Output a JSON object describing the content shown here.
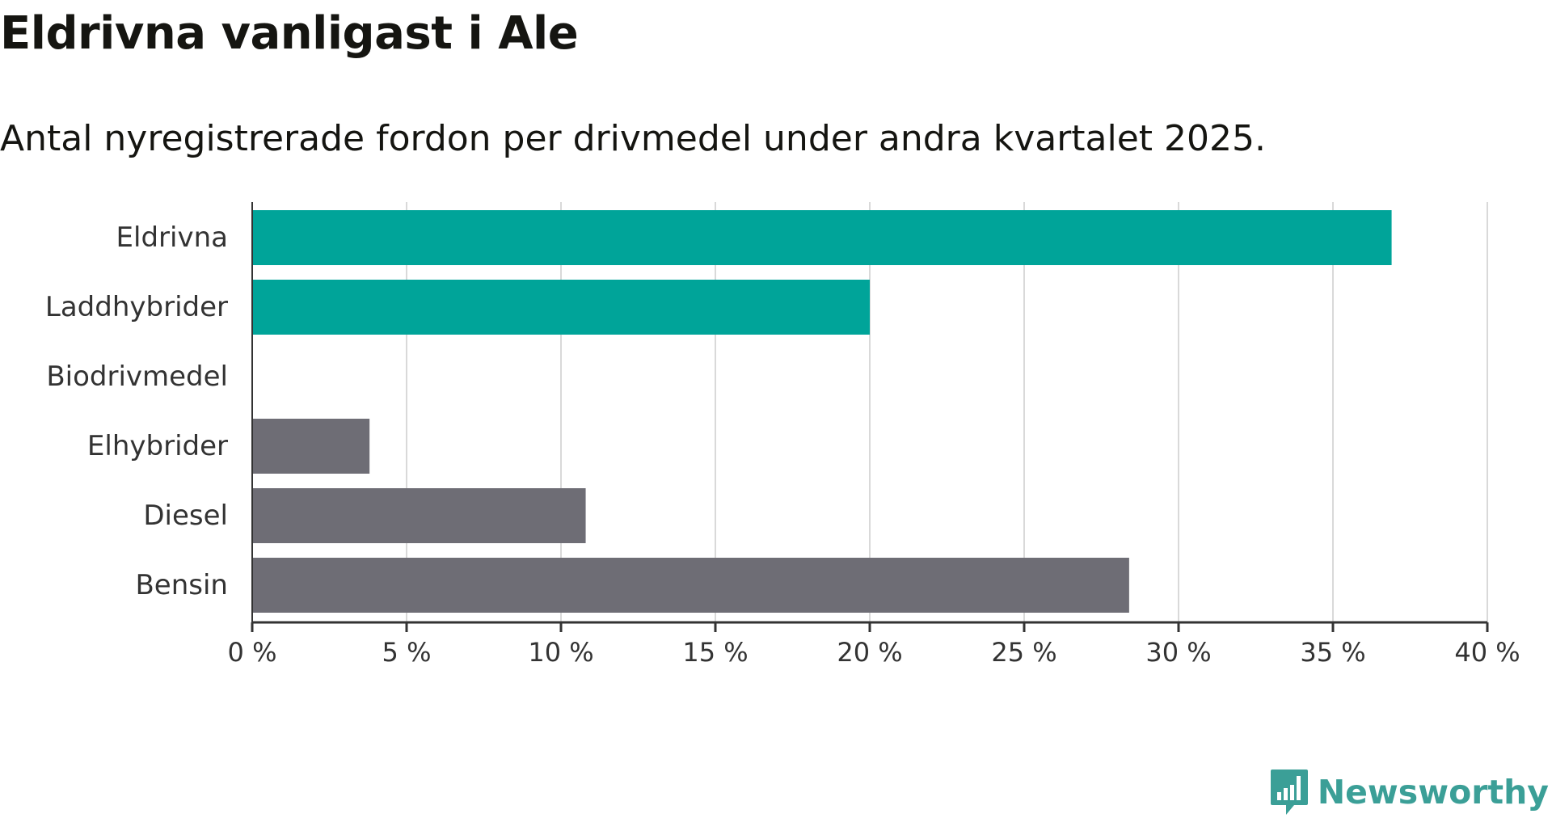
{
  "header": {
    "title": "Eldrivna vanligast i Ale",
    "subtitle": "Antal nyregistrerade fordon per drivmedel under andra kvartalet 2025."
  },
  "brand": {
    "name": "Newsworthy",
    "color": "#3b9f97",
    "icon": "bar-chart-speech-bubble-icon"
  },
  "colors": {
    "highlight": "#00a499",
    "other": "#6e6d75",
    "grid": "#d9d9d9",
    "axis": "#333333"
  },
  "chart_data": {
    "type": "bar",
    "orientation": "horizontal",
    "title": "Eldrivna vanligast i Ale",
    "subtitle": "Antal nyregistrerade fordon per drivmedel under andra kvartalet 2025.",
    "categories": [
      "Eldrivna",
      "Laddhybrider",
      "Biodrivmedel",
      "Elhybrider",
      "Diesel",
      "Bensin"
    ],
    "values": [
      36.9,
      20.0,
      0,
      3.8,
      10.8,
      28.4
    ],
    "unit": "%",
    "bar_colors": [
      "#00a499",
      "#00a499",
      "#00a499",
      "#6e6d75",
      "#6e6d75",
      "#6e6d75"
    ],
    "xlim": [
      0,
      40
    ],
    "xticks": [
      0,
      5,
      10,
      15,
      20,
      25,
      30,
      35,
      40
    ],
    "xtick_labels": [
      "0 %",
      "5 %",
      "10 %",
      "15 %",
      "20 %",
      "25 %",
      "30 %",
      "35 %",
      "40 %"
    ],
    "xlabel": "",
    "ylabel": "",
    "grid": "vertical",
    "legend": "none"
  }
}
